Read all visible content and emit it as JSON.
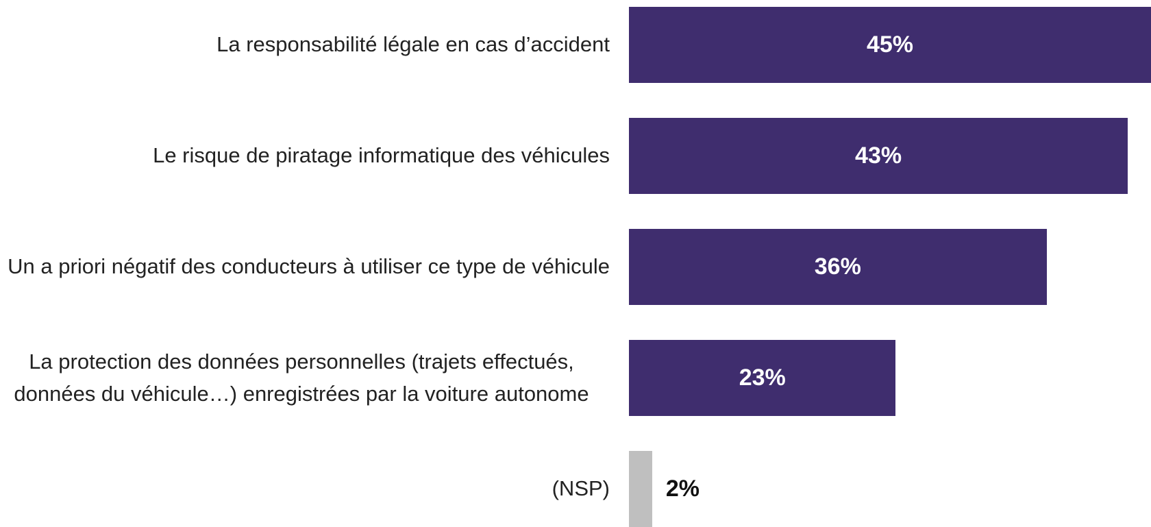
{
  "chart_data": {
    "type": "barh",
    "categories": [
      "La responsabilité légale en cas d’accident",
      "Le risque de piratage informatique des véhicules",
      "Un a priori négatif des conducteurs à utiliser ce type de véhicule",
      "La protection des données personnelles (trajets effectués, données du véhicule…) enregistrées par la voiture autonome",
      "(NSP)"
    ],
    "values": [
      45,
      43,
      36,
      23,
      2
    ],
    "value_labels": [
      "45%",
      "43%",
      "36%",
      "23%",
      "2%"
    ],
    "colors": [
      "#3f2d6e",
      "#3f2d6e",
      "#3f2d6e",
      "#3f2d6e",
      "#bfbfbf"
    ],
    "xlim": [
      0,
      45
    ]
  }
}
